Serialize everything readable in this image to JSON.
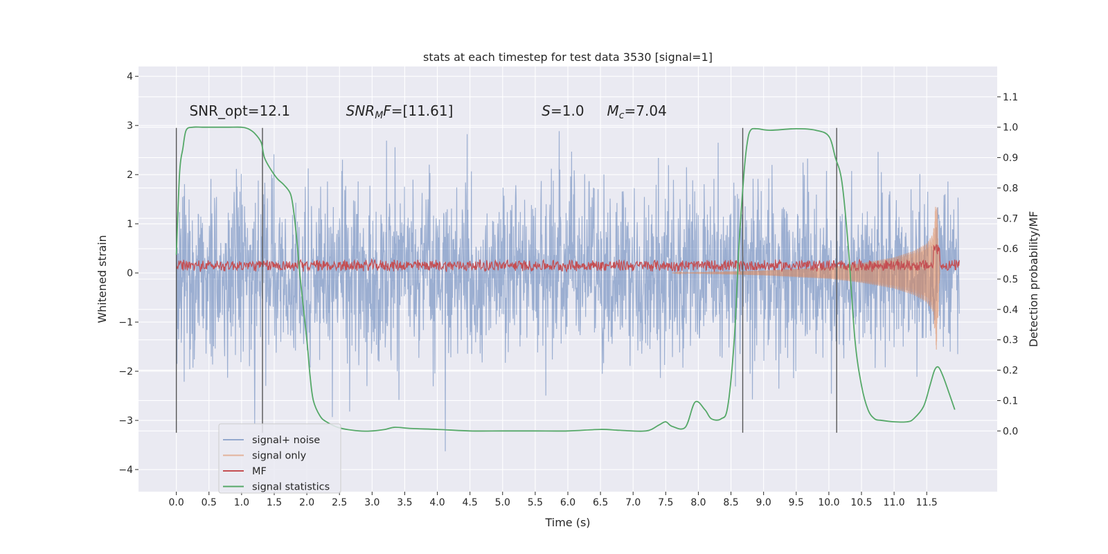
{
  "chart_data": {
    "type": "line",
    "title": "stats at each timestep for test data 3530 [signal=1]",
    "xlabel": "Time (s)",
    "ylabel": "Whitened strain",
    "y2label": "Detection probability/MF",
    "xlim": [
      -0.58,
      12.58
    ],
    "ylim": [
      -4.45,
      4.2
    ],
    "y2lim": [
      -0.2,
      1.2
    ],
    "xticks": [
      "0.0",
      "0.5",
      "1.0",
      "1.5",
      "2.0",
      "2.5",
      "3.0",
      "3.5",
      "4.0",
      "4.5",
      "5.0",
      "5.5",
      "6.0",
      "6.5",
      "7.0",
      "7.5",
      "8.0",
      "8.5",
      "9.0",
      "9.5",
      "10.0",
      "10.5",
      "11.0",
      "11.5"
    ],
    "yticks": [
      "−4",
      "−3",
      "−2",
      "−1",
      "0",
      "1",
      "2",
      "3",
      "4"
    ],
    "y2ticks": [
      "0.0",
      "0.1",
      "0.2",
      "0.3",
      "0.4",
      "0.5",
      "0.6",
      "0.7",
      "0.8",
      "0.9",
      "1.0",
      "1.1"
    ],
    "grid": true,
    "legend_position": "lower-left",
    "colors": {
      "signal_noise": "#4c72b0",
      "signal_only": "#dd8452",
      "mf": "#c44e52",
      "stat": "#55a868",
      "bg": "#eaeaf2"
    },
    "annotations": [
      {
        "x": 0.2,
        "y": 3.2,
        "parts": [
          {
            "t": "SNR_opt=12.1"
          }
        ]
      },
      {
        "x": 2.6,
        "y": 3.2,
        "parts": [
          {
            "t": "SNR",
            "i": true
          },
          {
            "t": "M",
            "i": true,
            "sub": true
          },
          {
            "t": "F",
            "i": true
          },
          {
            "t": "=[11.61]"
          }
        ]
      },
      {
        "x": 5.6,
        "y": 3.2,
        "parts": [
          {
            "t": "S",
            "i": true
          },
          {
            "t": "=1.0"
          }
        ]
      },
      {
        "x": 6.6,
        "y": 3.2,
        "parts": [
          {
            "t": "M",
            "i": true
          },
          {
            "t": "c",
            "i": true,
            "sub": true
          },
          {
            "t": "=7.04"
          }
        ]
      }
    ],
    "vlines": [
      0.0,
      1.32,
      8.68,
      10.12
    ],
    "vline_range": [
      -3.25,
      2.95
    ],
    "series": [
      {
        "name": "signal+ noise",
        "key": "signal_noise",
        "noise_sd": 0.85,
        "x_range": [
          0.0,
          12.0
        ]
      },
      {
        "name": "signal only",
        "key": "signal_only",
        "envelope": {
          "x": [
            7.6,
            9.0,
            10.0,
            10.5,
            11.0,
            11.3,
            11.5,
            11.6,
            11.65,
            11.7
          ],
          "amp": [
            0.0,
            0.05,
            0.12,
            0.2,
            0.32,
            0.45,
            0.6,
            0.8,
            1.6,
            0.0
          ]
        }
      },
      {
        "name": "MF",
        "key": "mf",
        "level": 0.15,
        "spread": 0.13,
        "x_range": [
          0.0,
          12.0
        ]
      },
      {
        "name": "signal statistics",
        "key": "stat",
        "axis": "right",
        "x": [
          0.0,
          0.05,
          0.1,
          0.15,
          0.25,
          0.4,
          0.6,
          0.8,
          1.0,
          1.1,
          1.2,
          1.3,
          1.35,
          1.45,
          1.55,
          1.65,
          1.75,
          1.8,
          1.85,
          1.9,
          2.0,
          2.05,
          2.1,
          2.2,
          2.3,
          2.5,
          2.8,
          3.0,
          3.2,
          3.35,
          3.6,
          4.0,
          4.5,
          5.0,
          5.5,
          6.0,
          6.5,
          6.8,
          7.2,
          7.4,
          7.5,
          7.6,
          7.8,
          7.95,
          8.1,
          8.2,
          8.35,
          8.45,
          8.55,
          8.62,
          8.7,
          8.75,
          8.8,
          8.9,
          9.1,
          9.5,
          9.8,
          10.0,
          10.1,
          10.2,
          10.3,
          10.4,
          10.5,
          10.6,
          10.7,
          10.8,
          11.0,
          11.2,
          11.3,
          11.45,
          11.55,
          11.62,
          11.68,
          11.75,
          11.85,
          11.93
        ],
        "y": [
          0.58,
          0.85,
          0.93,
          0.99,
          1.0,
          1.0,
          1.0,
          1.0,
          1.0,
          0.995,
          0.98,
          0.95,
          0.9,
          0.86,
          0.83,
          0.81,
          0.78,
          0.72,
          0.62,
          0.5,
          0.3,
          0.18,
          0.1,
          0.05,
          0.03,
          0.01,
          0.0,
          0.0,
          0.005,
          0.012,
          0.008,
          0.005,
          0.0,
          0.0,
          0.0,
          0.0,
          0.005,
          0.002,
          0.0,
          0.02,
          0.03,
          0.015,
          0.012,
          0.095,
          0.07,
          0.04,
          0.04,
          0.08,
          0.3,
          0.6,
          0.85,
          0.95,
          0.99,
          0.995,
          0.99,
          0.995,
          0.99,
          0.97,
          0.9,
          0.82,
          0.6,
          0.3,
          0.15,
          0.07,
          0.04,
          0.035,
          0.03,
          0.03,
          0.04,
          0.08,
          0.15,
          0.2,
          0.21,
          0.18,
          0.12,
          0.07
        ]
      }
    ]
  }
}
